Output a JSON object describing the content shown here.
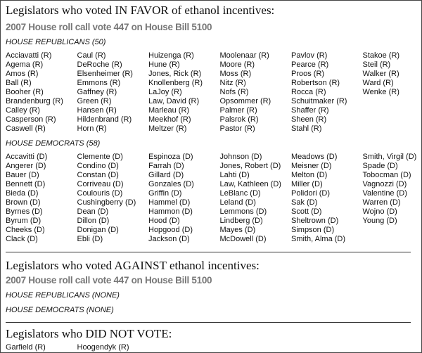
{
  "sections": [
    {
      "heading": "Legislators who voted IN FAVOR of ethanol incentives:",
      "subheading": "2007 House roll call vote 447 on House Bill 5100",
      "groups": [
        {
          "label": "HOUSE REPUBLICANS (50)",
          "columns": [
            [
              "Acciavatti (R)",
              "Agema (R)",
              "Amos (R)",
              "Ball (R)",
              "Booher (R)",
              "Brandenburg (R)",
              "Calley (R)",
              "Casperson (R)",
              "Caswell (R)"
            ],
            [
              "Caul (R)",
              "DeRoche (R)",
              "Elsenheimer (R)",
              "Emmons (R)",
              "Gaffney (R)",
              "Green (R)",
              "Hansen (R)",
              "Hildenbrand (R)",
              "Horn (R)"
            ],
            [
              "Huizenga (R)",
              "Hune (R)",
              "Jones, Rick (R)",
              "Knollenberg (R)",
              "LaJoy (R)",
              "Law, David (R)",
              "Marleau (R)",
              "Meekhof (R)",
              "Meltzer (R)"
            ],
            [
              "Moolenaar (R)",
              "Moore (R)",
              "Moss (R)",
              "Nitz (R)",
              "Nofs (R)",
              "Opsommer (R)",
              "Palmer (R)",
              "Palsrok (R)",
              "Pastor (R)"
            ],
            [
              "Pavlov (R)",
              "Pearce (R)",
              "Proos (R)",
              "Robertson (R)",
              "Rocca (R)",
              "Schuitmaker (R)",
              "Shaffer (R)",
              "Sheen (R)",
              "Stahl (R)"
            ],
            [
              "Stakoe (R)",
              "Steil (R)",
              "Walker (R)",
              "Ward (R)",
              "Wenke (R)"
            ]
          ]
        },
        {
          "label": "HOUSE DEMOCRATS (58)",
          "columns": [
            [
              "Accavitti (D)",
              "Angerer (D)",
              "Bauer (D)",
              "Bennett (D)",
              "Bieda (D)",
              "Brown (D)",
              "Byrnes (D)",
              "Byrum (D)",
              "Cheeks (D)",
              "Clack (D)"
            ],
            [
              "Clemente (D)",
              "Condino (D)",
              "Constan (D)",
              "Corriveau (D)",
              "Coulouris (D)",
              "Cushingberry (D)",
              "Dean (D)",
              "Dillon (D)",
              "Donigan (D)",
              "Ebli (D)"
            ],
            [
              "Espinoza (D)",
              "Farrah (D)",
              "Gillard (D)",
              "Gonzales (D)",
              "Griffin (D)",
              "Hammel (D)",
              "Hammon (D)",
              "Hood (D)",
              "Hopgood (D)",
              "Jackson (D)"
            ],
            [
              "Johnson (D)",
              "Jones, Robert (D)",
              "Lahti (D)",
              "Law, Kathleen (D)",
              "LeBlanc (D)",
              "Leland (D)",
              "Lemmons (D)",
              "Lindberg (D)",
              "Mayes (D)",
              "McDowell (D)"
            ],
            [
              "Meadows (D)",
              "Meisner (D)",
              "Melton (D)",
              "Miller (D)",
              "Polidori (D)",
              "Sak (D)",
              "Scott (D)",
              "Sheltrown (D)",
              "Simpson (D)",
              "Smith, Alma (D)"
            ],
            [
              "Smith, Virgil (D)",
              "Spade (D)",
              "Tobocman (D)",
              "Vagnozzi (D)",
              "Valentine (D)",
              "Warren (D)",
              "Wojno (D)",
              "Young (D)"
            ]
          ]
        }
      ]
    },
    {
      "heading": "Legislators who voted AGAINST ethanol incentives:",
      "subheading": "2007 House roll call vote 447 on House Bill 5100",
      "groups": [
        {
          "label": "HOUSE REPUBLICANS (NONE)"
        },
        {
          "label": "HOUSE DEMOCRATS (NONE)"
        }
      ]
    },
    {
      "heading": "Legislators who DID NOT VOTE:",
      "columns": [
        [
          "Garfield (R)"
        ],
        [
          "Hoogendyk (R)"
        ]
      ]
    }
  ]
}
